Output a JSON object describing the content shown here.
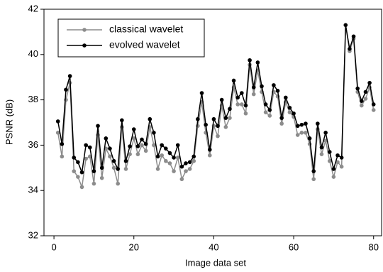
{
  "chart_data": {
    "type": "line",
    "x_label": "Image data set",
    "y_label": "PSNR (dB)",
    "x": [
      1,
      2,
      3,
      4,
      5,
      6,
      7,
      8,
      9,
      10,
      11,
      12,
      13,
      14,
      15,
      16,
      17,
      18,
      19,
      20,
      21,
      22,
      23,
      24,
      25,
      26,
      27,
      28,
      29,
      30,
      31,
      32,
      33,
      34,
      35,
      36,
      37,
      38,
      39,
      40,
      41,
      42,
      43,
      44,
      45,
      46,
      47,
      48,
      49,
      50,
      51,
      52,
      53,
      54,
      55,
      56,
      57,
      58,
      59,
      60,
      61,
      62,
      63,
      64,
      65,
      66,
      67,
      68,
      69,
      70,
      71,
      72,
      73,
      74,
      75,
      76,
      77,
      78,
      79,
      80
    ],
    "series": [
      {
        "name": "classical wavelet",
        "color": "#8c8c8c",
        "values": [
          36.55,
          35.5,
          38.0,
          38.75,
          34.85,
          34.6,
          34.15,
          35.4,
          35.5,
          34.3,
          36.45,
          34.55,
          35.85,
          35.5,
          35.0,
          34.3,
          36.8,
          34.95,
          35.6,
          36.3,
          35.6,
          36.0,
          35.75,
          36.8,
          36.0,
          34.95,
          35.55,
          35.3,
          35.2,
          34.85,
          35.45,
          34.5,
          34.85,
          34.95,
          35.3,
          36.85,
          37.9,
          36.55,
          35.55,
          36.85,
          36.4,
          37.75,
          36.8,
          37.2,
          38.55,
          37.8,
          37.8,
          37.4,
          39.55,
          38.25,
          39.3,
          38.35,
          37.45,
          37.3,
          38.35,
          38.15,
          36.95,
          37.9,
          37.45,
          37.25,
          36.45,
          36.55,
          36.55,
          36.05,
          34.5,
          36.7,
          35.6,
          36.2,
          35.3,
          34.6,
          35.25,
          35.05,
          41.3,
          40.15,
          40.7,
          38.35,
          37.75,
          38.05,
          38.55,
          37.55
        ]
      },
      {
        "name": "evolved wavelet",
        "color": "#000000",
        "values": [
          37.05,
          36.05,
          38.45,
          39.05,
          35.45,
          35.25,
          34.8,
          36.0,
          35.9,
          34.85,
          36.85,
          35.0,
          36.3,
          35.85,
          35.3,
          34.95,
          37.1,
          35.3,
          35.95,
          36.7,
          35.95,
          36.25,
          36.05,
          37.15,
          36.55,
          35.5,
          36.0,
          35.85,
          35.65,
          35.45,
          36.0,
          35.05,
          35.2,
          35.25,
          35.5,
          37.15,
          38.3,
          36.9,
          35.8,
          37.15,
          36.85,
          38.0,
          37.2,
          37.6,
          38.85,
          38.1,
          38.3,
          37.75,
          39.75,
          38.55,
          39.65,
          38.6,
          37.8,
          37.55,
          38.65,
          38.4,
          37.2,
          38.1,
          37.65,
          37.4,
          36.85,
          36.9,
          36.95,
          36.3,
          34.85,
          36.95,
          35.9,
          36.55,
          35.7,
          34.95,
          35.55,
          35.45,
          41.3,
          40.25,
          40.8,
          38.5,
          37.95,
          38.35,
          38.75,
          37.8
        ]
      }
    ],
    "xlim": [
      -2.5,
      82
    ],
    "ylim": [
      32,
      42
    ],
    "xticks": [
      0,
      20,
      40,
      60,
      80
    ],
    "yticks": [
      32,
      34,
      36,
      38,
      40,
      42
    ],
    "grid": false,
    "legend": "upper left"
  }
}
